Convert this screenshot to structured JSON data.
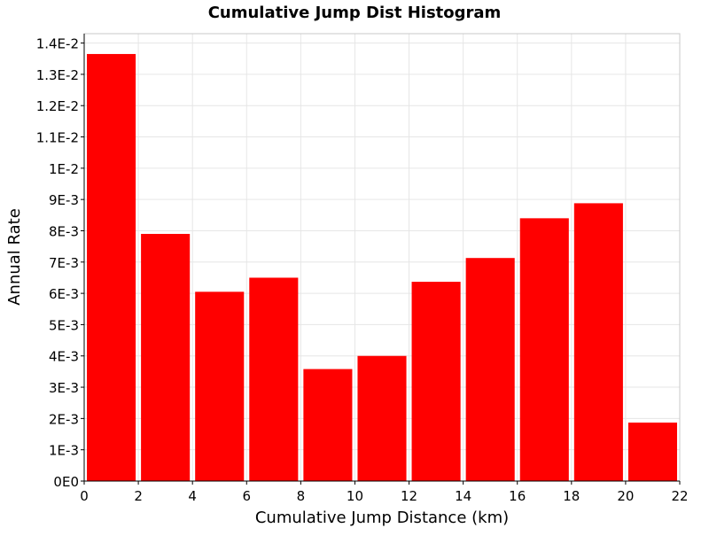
{
  "chart_data": {
    "type": "bar",
    "title": "Cumulative Jump Dist Histogram",
    "xlabel": "Cumulative Jump Distance (km)",
    "ylabel": "Annual Rate",
    "xlim": [
      0,
      22
    ],
    "ylim": [
      0,
      0.0143
    ],
    "x_ticks": [
      0,
      2,
      4,
      6,
      8,
      10,
      12,
      14,
      16,
      18,
      20,
      22
    ],
    "x_tick_labels": [
      "0",
      "2",
      "4",
      "6",
      "8",
      "10",
      "12",
      "14",
      "16",
      "18",
      "20",
      "22"
    ],
    "y_ticks": [
      0,
      0.001,
      0.002,
      0.003,
      0.004,
      0.005,
      0.006,
      0.007,
      0.008,
      0.009,
      0.01,
      0.011,
      0.012,
      0.013,
      0.014
    ],
    "y_tick_labels": [
      "0E0",
      "1E-3",
      "2E-3",
      "3E-3",
      "4E-3",
      "5E-3",
      "6E-3",
      "7E-3",
      "8E-3",
      "9E-3",
      "1E-2",
      "1.1E-2",
      "1.2E-2",
      "1.3E-2",
      "1.4E-2"
    ],
    "bin_width": 2,
    "x": [
      1,
      3,
      5,
      7,
      9,
      11,
      13,
      15,
      17,
      19,
      21
    ],
    "values": [
      0.01365,
      0.0079,
      0.00605,
      0.0065,
      0.00358,
      0.004,
      0.00637,
      0.00713,
      0.0084,
      0.00888,
      0.00187
    ],
    "grid": true,
    "bar_color": "#ff0000",
    "grid_color": "#e6e6e6",
    "frame_color": "#c8c8c8"
  }
}
